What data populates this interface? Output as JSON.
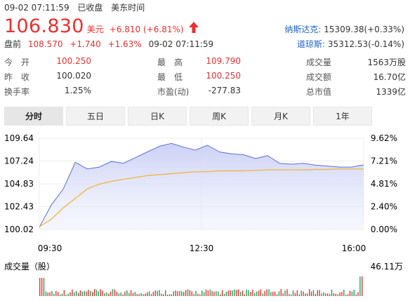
{
  "header": {
    "datetime": "09-02 07:11:59",
    "status": "已收盘",
    "timezone": "美东时间"
  },
  "quote": {
    "price": "106.830",
    "currency": "美元",
    "change": "+6.810 (+6.81%)",
    "arrow_icon": "up-arrow-icon",
    "accent_color": "#e93030"
  },
  "after_hours": {
    "label": "盘前",
    "price": "108.570",
    "change": "+1.740",
    "pct": "+1.63%",
    "time": "09-02 07:11:59"
  },
  "indices": [
    {
      "name": "纳斯达克:",
      "value": "15309.38(+0.33%)"
    },
    {
      "name": "道琼斯:",
      "value": "35312.53(-0.14%)"
    }
  ],
  "stats": [
    [
      {
        "label": "今　开",
        "value": "100.250",
        "color": "red"
      },
      {
        "label": "最　高",
        "value": "109.790",
        "color": "red"
      },
      {
        "label": "成交量",
        "value": "1563万股",
        "color": "black"
      }
    ],
    [
      {
        "label": "昨　收",
        "value": "100.020",
        "color": "black"
      },
      {
        "label": "最　低",
        "value": "100.250",
        "color": "red"
      },
      {
        "label": "成交额",
        "value": "16.70亿",
        "color": "black"
      }
    ],
    [
      {
        "label": "换手率",
        "value": "1.25%",
        "color": "black"
      },
      {
        "label": "市盈(动)",
        "value": "-277.83",
        "color": "black"
      },
      {
        "label": "总市值",
        "value": "1339亿",
        "color": "black"
      }
    ]
  ],
  "tabs": [
    {
      "label": "分时",
      "active": true
    },
    {
      "label": "五日",
      "active": false
    },
    {
      "label": "日K",
      "active": false
    },
    {
      "label": "周K",
      "active": false
    },
    {
      "label": "月K",
      "active": false
    },
    {
      "label": "1年",
      "active": false
    }
  ],
  "chart_data": {
    "type": "line",
    "series": [
      {
        "name": "",
        "color": "#5b6fd6",
        "x": [
          "09:30",
          "09:40",
          "09:50",
          "10:00",
          "10:15",
          "10:30",
          "10:45",
          "11:00",
          "11:15",
          "11:30",
          "11:45",
          "12:00",
          "12:15",
          "12:30",
          "12:45",
          "13:00",
          "13:15",
          "13:30",
          "13:45",
          "14:00",
          "14:15",
          "14:30",
          "14:45",
          "15:00",
          "15:15",
          "15:30",
          "15:45",
          "16:00"
        ],
        "values": [
          100.25,
          102.6,
          104.3,
          107.1,
          106.4,
          106.6,
          107.2,
          107.0,
          107.6,
          108.2,
          108.8,
          109.1,
          108.7,
          108.4,
          108.9,
          108.2,
          108.0,
          107.9,
          107.5,
          107.8,
          107.0,
          106.9,
          107.0,
          106.8,
          106.7,
          106.6,
          106.6,
          106.83
        ]
      },
      {
        "name": "",
        "color": "#f0b84a",
        "x": [
          "09:30",
          "09:40",
          "09:50",
          "10:00",
          "10:15",
          "10:30",
          "10:45",
          "11:00",
          "11:15",
          "11:30",
          "11:45",
          "12:00",
          "12:15",
          "12:30",
          "12:45",
          "13:00",
          "13:15",
          "13:30",
          "13:45",
          "14:00",
          "14:15",
          "14:30",
          "14:45",
          "15:00",
          "15:15",
          "15:30",
          "15:45",
          "16:00"
        ],
        "values": [
          100.3,
          101.1,
          102.3,
          103.3,
          104.3,
          104.8,
          105.1,
          105.3,
          105.5,
          105.7,
          105.8,
          105.9,
          106.0,
          106.1,
          106.1,
          106.2,
          106.2,
          106.2,
          106.25,
          106.3,
          106.3,
          106.3,
          106.3,
          106.35,
          106.35,
          106.4,
          106.4,
          106.4
        ]
      }
    ],
    "y_ticks_left": [
      "109.64",
      "107.24",
      "104.83",
      "102.43",
      "100.02"
    ],
    "y_ticks_right": [
      "9.62%",
      "7.21%",
      "4.81%",
      "2.40%",
      "0.00%"
    ],
    "x_ticks": [
      "09:30",
      "12:30",
      "16:00"
    ],
    "ylim": [
      100.02,
      109.64
    ],
    "grid": true,
    "volume": {
      "label": "成交量（股）",
      "max_label": "46.11万"
    }
  }
}
